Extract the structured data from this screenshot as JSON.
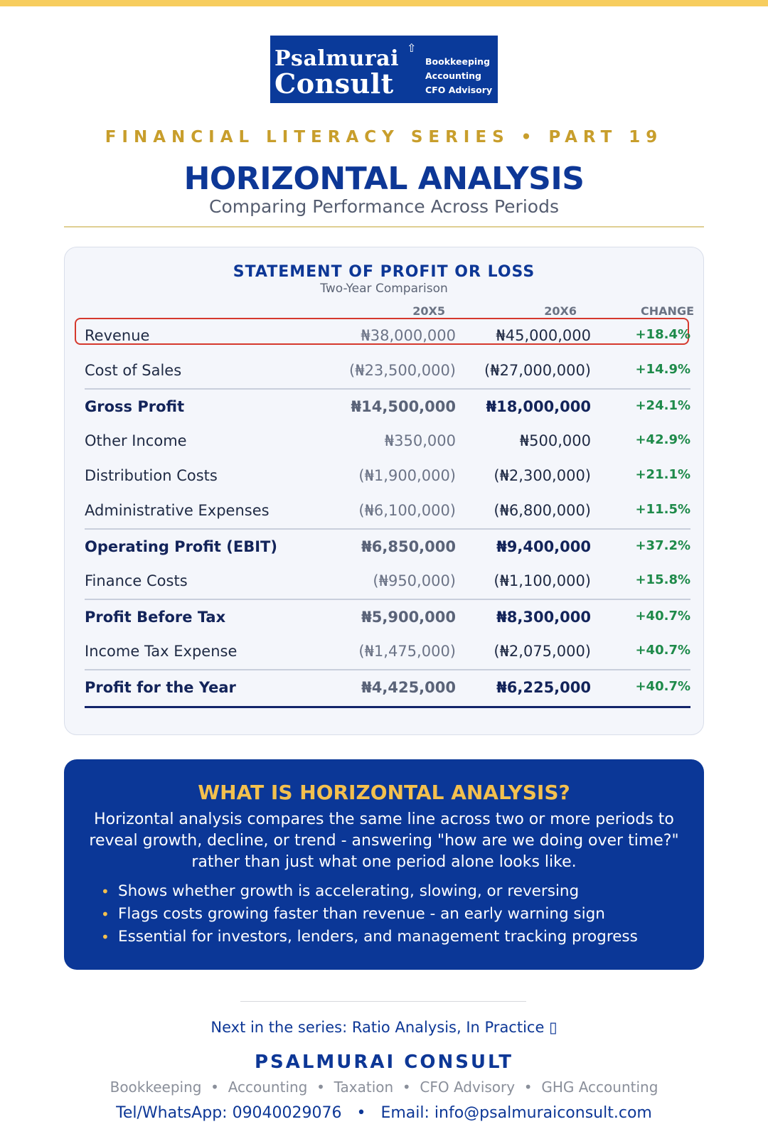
{
  "logo": {
    "name_line1": "Psalmurai",
    "name_line2": "Consult",
    "tags": [
      "Bookkeeping",
      "Accounting",
      "CFO Advisory"
    ]
  },
  "header": {
    "series": "FINANCIAL LITERACY SERIES • PART 19",
    "title": "HORIZONTAL ANALYSIS",
    "subtitle": "Comparing Performance Across Periods"
  },
  "statement": {
    "title": "STATEMENT OF PROFIT OR LOSS",
    "subtitle": "Two-Year Comparison",
    "columns": [
      "20X5",
      "20X6",
      "CHANGE"
    ],
    "rows": [
      {
        "label": "Revenue",
        "v1": "₦38,000,000",
        "v2": "₦45,000,000",
        "change": "+18.4%"
      },
      {
        "label": "Cost of Sales",
        "v1": "(₦23,500,000)",
        "v2": "(₦27,000,000)",
        "change": "+14.9%"
      },
      {
        "label": "Gross Profit",
        "v1": "₦14,500,000",
        "v2": "₦18,000,000",
        "change": "+24.1%"
      },
      {
        "label": "Other Income",
        "v1": "₦350,000",
        "v2": "₦500,000",
        "change": "+42.9%"
      },
      {
        "label": "Distribution Costs",
        "v1": "(₦1,900,000)",
        "v2": "(₦2,300,000)",
        "change": "+21.1%"
      },
      {
        "label": "Administrative Expenses",
        "v1": "(₦6,100,000)",
        "v2": "(₦6,800,000)",
        "change": "+11.5%"
      },
      {
        "label": "Operating Profit (EBIT)",
        "v1": "₦6,850,000",
        "v2": "₦9,400,000",
        "change": "+37.2%"
      },
      {
        "label": "Finance Costs",
        "v1": "(₦950,000)",
        "v2": "(₦1,100,000)",
        "change": "+15.8%"
      },
      {
        "label": "Profit Before Tax",
        "v1": "₦5,900,000",
        "v2": "₦8,300,000",
        "change": "+40.7%"
      },
      {
        "label": "Income Tax Expense",
        "v1": "(₦1,475,000)",
        "v2": "(₦2,075,000)",
        "change": "+40.7%"
      },
      {
        "label": "Profit for the Year",
        "v1": "₦4,425,000",
        "v2": "₦6,225,000",
        "change": "+40.7%"
      }
    ]
  },
  "info": {
    "title": "WHAT IS HORIZONTAL ANALYSIS?",
    "body": "Horizontal analysis compares the same line across two or more periods to reveal growth, decline, or trend - answering \"how are we doing over time?\" rather than just what one period alone looks like.",
    "bullets": [
      "Shows whether growth is accelerating, slowing, or reversing",
      "Flags costs growing faster than revenue - an early warning sign",
      "Essential for investors, lenders, and management tracking progress"
    ]
  },
  "footer": {
    "next": "Next in the series: Ratio Analysis, In Practice ▯",
    "brand": "PSALMURAI CONSULT",
    "services": "Bookkeeping  •  Accounting  •  Taxation  •  CFO Advisory  •  GHG Accounting",
    "contact": "Tel/WhatsApp: 09040029076   •   Email: info@psalmuraiconsult.com"
  },
  "colors": {
    "navy": "#0d3796",
    "gold": "#c89e2c",
    "green": "#1e8a4a",
    "highlight": "#d5392d",
    "topbar": "#f7cd5e"
  }
}
